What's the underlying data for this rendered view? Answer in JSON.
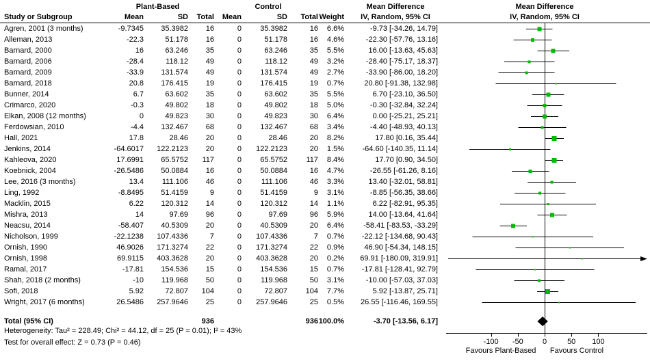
{
  "header": {
    "study_col": "Study or Subgroup",
    "group1": "Plant-Based",
    "group2": "Control",
    "mean": "Mean",
    "sd": "SD",
    "total": "Total",
    "weight": "Weight",
    "effect_title": "Mean Difference",
    "effect_sub": "IV, Random, 95% CI",
    "plot_title": "Mean Difference",
    "plot_sub": "IV, Random, 95% CI"
  },
  "chart_data": {
    "type": "forest",
    "marker_color": "#00bb00",
    "x_axis": {
      "ticks": [
        -100,
        -50,
        0,
        50,
        100
      ],
      "favours_left": "Favours Plant-Based",
      "favours_right": "Favours Control"
    },
    "studies": [
      {
        "name": "Agren, 2001 (3 months)",
        "mean1": "-9.7345",
        "sd1": "35.3982",
        "n1": "16",
        "mean2": "0",
        "sd2": "35.3982",
        "n2": "16",
        "weight": "6.6%",
        "ci_text": "-9.73 [-34.26, 14.79]",
        "md": -9.73,
        "lo": -34.26,
        "hi": 14.79
      },
      {
        "name": "Alleman, 2013",
        "mean1": "-22.3",
        "sd1": "51.178",
        "n1": "16",
        "mean2": "0",
        "sd2": "51.178",
        "n2": "16",
        "weight": "4.6%",
        "ci_text": "-22.30 [-57.76, 13.16]",
        "md": -22.3,
        "lo": -57.76,
        "hi": 13.16
      },
      {
        "name": "Barnard, 2000",
        "mean1": "16",
        "sd1": "63.246",
        "n1": "35",
        "mean2": "0",
        "sd2": "63.246",
        "n2": "35",
        "weight": "5.5%",
        "ci_text": "16.00 [-13.63, 45.63]",
        "md": 16.0,
        "lo": -13.63,
        "hi": 45.63
      },
      {
        "name": "Barnard, 2006",
        "mean1": "-28.4",
        "sd1": "118.12",
        "n1": "49",
        "mean2": "0",
        "sd2": "118.12",
        "n2": "49",
        "weight": "3.2%",
        "ci_text": "-28.40 [-75.17, 18.37]",
        "md": -28.4,
        "lo": -75.17,
        "hi": 18.37
      },
      {
        "name": "Barnard, 2009",
        "mean1": "-33.9",
        "sd1": "131.574",
        "n1": "49",
        "mean2": "0",
        "sd2": "131.574",
        "n2": "49",
        "weight": "2.7%",
        "ci_text": "-33.90 [-86.00, 18.20]",
        "md": -33.9,
        "lo": -86.0,
        "hi": 18.2
      },
      {
        "name": "Barnard, 2018",
        "mean1": "20.8",
        "sd1": "176.415",
        "n1": "19",
        "mean2": "0",
        "sd2": "176.415",
        "n2": "19",
        "weight": "0.7%",
        "ci_text": "20.80 [-91.38, 132.98]",
        "md": 20.8,
        "lo": -91.38,
        "hi": 132.98
      },
      {
        "name": "Bunner, 2014",
        "mean1": "6.7",
        "sd1": "63.602",
        "n1": "35",
        "mean2": "0",
        "sd2": "63.602",
        "n2": "35",
        "weight": "5.5%",
        "ci_text": "6.70 [-23.10, 36.50]",
        "md": 6.7,
        "lo": -23.1,
        "hi": 36.5
      },
      {
        "name": "Crimarco, 2020",
        "mean1": "-0.3",
        "sd1": "49.802",
        "n1": "18",
        "mean2": "0",
        "sd2": "49.802",
        "n2": "18",
        "weight": "5.0%",
        "ci_text": "-0.30 [-32.84, 32.24]",
        "md": -0.3,
        "lo": -32.84,
        "hi": 32.24
      },
      {
        "name": "Elkan, 2008 (12 months)",
        "mean1": "0",
        "sd1": "49.823",
        "n1": "30",
        "mean2": "0",
        "sd2": "49.823",
        "n2": "30",
        "weight": "6.4%",
        "ci_text": "0.00 [-25.21, 25.21]",
        "md": 0.0,
        "lo": -25.21,
        "hi": 25.21
      },
      {
        "name": "Ferdowsian, 2010",
        "mean1": "-4.4",
        "sd1": "132.467",
        "n1": "68",
        "mean2": "0",
        "sd2": "132.467",
        "n2": "68",
        "weight": "3.4%",
        "ci_text": "-4.40 [-48.93, 40.13]",
        "md": -4.4,
        "lo": -48.93,
        "hi": 40.13
      },
      {
        "name": "Hall, 2021",
        "mean1": "17.8",
        "sd1": "28.46",
        "n1": "20",
        "mean2": "0",
        "sd2": "28.46",
        "n2": "20",
        "weight": "8.2%",
        "ci_text": "17.80 [0.16, 35.44]",
        "md": 17.8,
        "lo": 0.16,
        "hi": 35.44
      },
      {
        "name": "Jenkins, 2014",
        "mean1": "-64.6017",
        "sd1": "122.2123",
        "n1": "20",
        "mean2": "0",
        "sd2": "122.2123",
        "n2": "20",
        "weight": "1.5%",
        "ci_text": "-64.60 [-140.35, 11.14]",
        "md": -64.6,
        "lo": -140.35,
        "hi": 11.14
      },
      {
        "name": "Kahleova, 2020",
        "mean1": "17.6991",
        "sd1": "65.5752",
        "n1": "117",
        "mean2": "0",
        "sd2": "65.5752",
        "n2": "117",
        "weight": "8.4%",
        "ci_text": "17.70 [0.90, 34.50]",
        "md": 17.7,
        "lo": 0.9,
        "hi": 34.5
      },
      {
        "name": "Koebnick, 2004",
        "mean1": "-26.5486",
        "sd1": "50.0884",
        "n1": "16",
        "mean2": "0",
        "sd2": "50.0884",
        "n2": "16",
        "weight": "4.7%",
        "ci_text": "-26.55 [-61.26, 8.16]",
        "md": -26.55,
        "lo": -61.26,
        "hi": 8.16
      },
      {
        "name": "Lee, 2016 (3 months)",
        "mean1": "13.4",
        "sd1": "111.106",
        "n1": "46",
        "mean2": "0",
        "sd2": "111.106",
        "n2": "46",
        "weight": "3.3%",
        "ci_text": "13.40 [-32.01, 58.81]",
        "md": 13.4,
        "lo": -32.01,
        "hi": 58.81
      },
      {
        "name": "Ling, 1992",
        "mean1": "-8.8495",
        "sd1": "51.4159",
        "n1": "9",
        "mean2": "0",
        "sd2": "51.4159",
        "n2": "9",
        "weight": "3.1%",
        "ci_text": "-8.85 [-56.35, 38.66]",
        "md": -8.85,
        "lo": -56.35,
        "hi": 38.66
      },
      {
        "name": "Macklin, 2015",
        "mean1": "6.22",
        "sd1": "120.312",
        "n1": "14",
        "mean2": "0",
        "sd2": "120.312",
        "n2": "14",
        "weight": "1.1%",
        "ci_text": "6.22 [-82.91, 95.35]",
        "md": 6.22,
        "lo": -82.91,
        "hi": 95.35
      },
      {
        "name": "Mishra, 2013",
        "mean1": "14",
        "sd1": "97.69",
        "n1": "96",
        "mean2": "0",
        "sd2": "97.69",
        "n2": "96",
        "weight": "5.9%",
        "ci_text": "14.00 [-13.64, 41.64]",
        "md": 14.0,
        "lo": -13.64,
        "hi": 41.64
      },
      {
        "name": "Neacsu, 2014",
        "mean1": "-58.407",
        "sd1": "40.5309",
        "n1": "20",
        "mean2": "0",
        "sd2": "40.5309",
        "n2": "20",
        "weight": "6.4%",
        "ci_text": "-58.41 [-83.53, -33.29]",
        "md": -58.41,
        "lo": -83.53,
        "hi": -33.29
      },
      {
        "name": "Nicholson, 1999",
        "mean1": "-22.1238",
        "sd1": "107.4336",
        "n1": "7",
        "mean2": "0",
        "sd2": "107.4336",
        "n2": "7",
        "weight": "0.7%",
        "ci_text": "-22.12 [-134.68, 90.43]",
        "md": -22.12,
        "lo": -134.68,
        "hi": 90.43
      },
      {
        "name": "Ornish, 1990",
        "mean1": "46.9026",
        "sd1": "171.3274",
        "n1": "22",
        "mean2": "0",
        "sd2": "171.3274",
        "n2": "22",
        "weight": "0.9%",
        "ci_text": "46.90 [-54.34, 148.15]",
        "md": 46.9,
        "lo": -54.34,
        "hi": 148.15
      },
      {
        "name": "Ornish, 1998",
        "mean1": "69.9115",
        "sd1": "403.3628",
        "n1": "20",
        "mean2": "0",
        "sd2": "403.3628",
        "n2": "20",
        "weight": "0.2%",
        "ci_text": "69.91 [-180.09, 319.91]",
        "md": 69.91,
        "lo": -180.09,
        "hi": 319.91
      },
      {
        "name": "Ramal, 2017",
        "mean1": "-17.81",
        "sd1": "154.536",
        "n1": "15",
        "mean2": "0",
        "sd2": "154.536",
        "n2": "15",
        "weight": "0.7%",
        "ci_text": "-17.81 [-128.41, 92.79]",
        "md": -17.81,
        "lo": -128.41,
        "hi": 92.79
      },
      {
        "name": "Shah, 2018 (2 months)",
        "mean1": "-10",
        "sd1": "119.968",
        "n1": "50",
        "mean2": "0",
        "sd2": "119.968",
        "n2": "50",
        "weight": "3.1%",
        "ci_text": "-10.00 [-57.03, 37.03]",
        "md": -10.0,
        "lo": -57.03,
        "hi": 37.03
      },
      {
        "name": "Sofi, 2018",
        "mean1": "5.92",
        "sd1": "72.807",
        "n1": "104",
        "mean2": "0",
        "sd2": "72.807",
        "n2": "104",
        "weight": "7.7%",
        "ci_text": "5.92 [-13.87, 25.71]",
        "md": 5.92,
        "lo": -13.87,
        "hi": 25.71
      },
      {
        "name": "Wright, 2017 (6 months)",
        "mean1": "26.5486",
        "sd1": "257.9646",
        "n1": "25",
        "mean2": "0",
        "sd2": "257.9646",
        "n2": "25",
        "weight": "0.5%",
        "ci_text": "26.55 [-116.46, 169.55]",
        "md": 26.55,
        "lo": -116.46,
        "hi": 169.55
      }
    ],
    "total": {
      "label": "Total (95% CI)",
      "n1": "936",
      "n2": "936",
      "weight": "100.0%",
      "ci_text": "-3.70 [-13.56, 6.17]",
      "md": -3.7,
      "lo": -13.56,
      "hi": 6.17
    },
    "heterogeneity": "Heterogeneity: Tau² = 228.49; Chi² = 44.12, df = 25 (P = 0.01); I² = 43%",
    "overall_effect": "Test for overall effect: Z = 0.73 (P = 0.46)"
  }
}
